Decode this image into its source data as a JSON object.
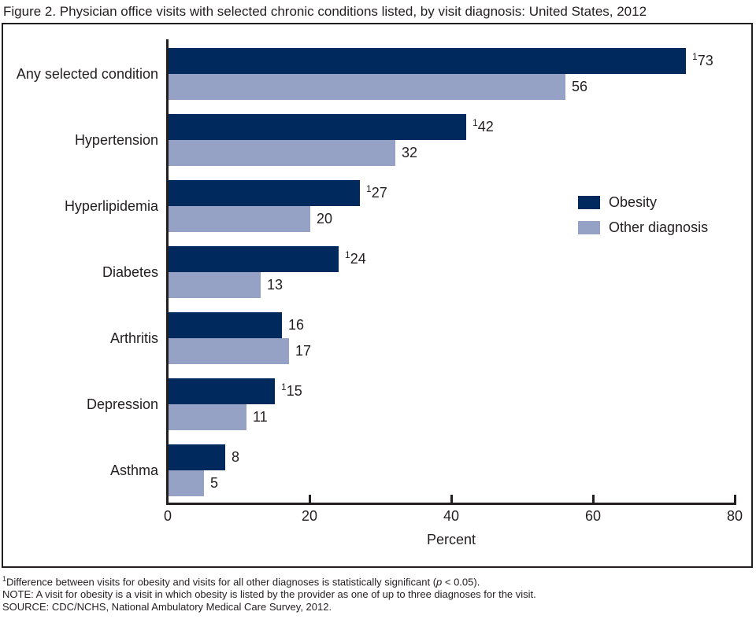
{
  "title": "Figure 2. Physician office visits with selected chronic conditions listed, by visit diagnosis: United States, 2012",
  "chart_data": {
    "type": "bar",
    "orientation": "horizontal",
    "title": "Figure 2. Physician office visits with selected chronic conditions listed, by visit diagnosis: United States, 2012",
    "categories": [
      "Any selected condition",
      "Hypertension",
      "Hyperlipidemia",
      "Diabetes",
      "Arthritis",
      "Depression",
      "Asthma"
    ],
    "series": [
      {
        "key": "obesity",
        "name": "Obesity",
        "color": "#002a5e",
        "values": [
          73,
          42,
          27,
          24,
          16,
          15,
          8
        ],
        "significant": [
          true,
          true,
          true,
          true,
          false,
          true,
          false
        ]
      },
      {
        "key": "other-diagnosis",
        "name": "Other diagnosis",
        "color": "#95a2c5",
        "values": [
          56,
          32,
          20,
          13,
          17,
          11,
          5
        ],
        "significant": [
          false,
          false,
          false,
          false,
          false,
          false,
          false
        ]
      }
    ],
    "significance_marker": "1",
    "xlabel": "Percent",
    "xlim": [
      0,
      80
    ],
    "xticks": [
      0,
      20,
      40,
      60,
      80
    ],
    "grid": false,
    "legend_position": "right-middle"
  },
  "footnotes": {
    "sig_sup": "1",
    "sig_pre": "Difference between visits for obesity and visits for all other diagnoses is statistically significant (",
    "sig_italic": "p",
    "sig_post": " < 0.05).",
    "note": "NOTE: A visit for obesity is a visit in which obesity is listed by the provider as one of up to three diagnoses for the visit.",
    "source": "SOURCE: CDC/NCHS, National Ambulatory Medical Care Survey, 2012."
  }
}
